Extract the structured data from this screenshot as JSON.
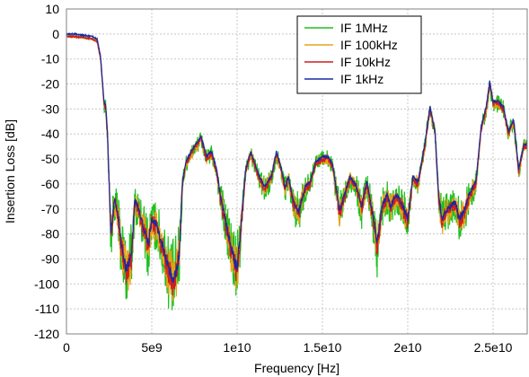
{
  "chart_data": {
    "type": "line",
    "xlabel": "Frequency [Hz]",
    "ylabel": "Insertion Loss [dB]",
    "xlim": [
      0,
      27000000000
    ],
    "ylim": [
      -120,
      10
    ],
    "grid": true,
    "legend_position": "top-right",
    "x_ticks": [
      {
        "value": 0,
        "label": "0"
      },
      {
        "value": 5000000000,
        "label": "5e9"
      },
      {
        "value": 10000000000,
        "label": "1e10"
      },
      {
        "value": 15000000000,
        "label": "1.5e10"
      },
      {
        "value": 20000000000,
        "label": "2e10"
      },
      {
        "value": 25000000000,
        "label": "2.5e10"
      }
    ],
    "y_ticks": [
      {
        "value": 10,
        "label": "10"
      },
      {
        "value": 0,
        "label": "0"
      },
      {
        "value": -10,
        "label": "-10"
      },
      {
        "value": -20,
        "label": "-20"
      },
      {
        "value": -30,
        "label": "-30"
      },
      {
        "value": -40,
        "label": "-40"
      },
      {
        "value": -50,
        "label": "-50"
      },
      {
        "value": -60,
        "label": "-60"
      },
      {
        "value": -70,
        "label": "-70"
      },
      {
        "value": -80,
        "label": "-80"
      },
      {
        "value": -90,
        "label": "-90"
      },
      {
        "value": -100,
        "label": "-100"
      },
      {
        "value": -110,
        "label": "-110"
      },
      {
        "value": -120,
        "label": "-120"
      }
    ],
    "base_curve": {
      "x_ghz": [
        0,
        0.5,
        1,
        1.5,
        1.8,
        2.0,
        2.2,
        2.3,
        2.4,
        2.5,
        2.6,
        2.7,
        2.8,
        3.0,
        3.2,
        3.5,
        3.8,
        4.0,
        4.2,
        4.5,
        4.8,
        5.0,
        5.3,
        5.6,
        6.0,
        6.3,
        6.6,
        6.8,
        7.0,
        7.3,
        7.6,
        7.9,
        8.2,
        8.5,
        8.8,
        9.0,
        9.3,
        9.6,
        9.9,
        10.0,
        10.2,
        10.5,
        10.8,
        11.0,
        11.3,
        11.6,
        12.0,
        12.3,
        12.6,
        12.8,
        13.0,
        13.3,
        13.6,
        14.0,
        14.3,
        14.6,
        15.0,
        15.3,
        15.6,
        16.0,
        16.3,
        16.6,
        17.0,
        17.3,
        17.6,
        18.0,
        18.2,
        18.5,
        18.8,
        19.0,
        19.3,
        19.6,
        20.0,
        20.3,
        20.6,
        21.0,
        21.3,
        21.6,
        21.8,
        22.0,
        22.2,
        22.5,
        22.8,
        23.0,
        23.3,
        23.6,
        24.0,
        24.3,
        24.6,
        24.8,
        25.0,
        25.3,
        25.6,
        25.9,
        26.2,
        26.5,
        26.8
      ],
      "y_db": [
        -1,
        -1,
        -1.5,
        -2,
        -3,
        -10,
        -28,
        -30,
        -40,
        -60,
        -80,
        -75,
        -67,
        -72,
        -85,
        -95,
        -90,
        -68,
        -70,
        -78,
        -85,
        -75,
        -78,
        -85,
        -95,
        -100,
        -90,
        -60,
        -52,
        -48,
        -45,
        -42,
        -50,
        -48,
        -55,
        -65,
        -75,
        -85,
        -93,
        -95,
        -80,
        -55,
        -48,
        -52,
        -58,
        -62,
        -58,
        -48,
        -55,
        -62,
        -58,
        -68,
        -72,
        -62,
        -60,
        -52,
        -50,
        -50,
        -53,
        -72,
        -65,
        -58,
        -62,
        -70,
        -60,
        -75,
        -85,
        -70,
        -65,
        -70,
        -65,
        -68,
        -75,
        -58,
        -60,
        -45,
        -30,
        -40,
        -65,
        -75,
        -72,
        -70,
        -68,
        -75,
        -72,
        -65,
        -60,
        -38,
        -30,
        -20,
        -28,
        -28,
        -30,
        -40,
        -35,
        -55,
        -45
      ]
    },
    "series": [
      {
        "name": "IF 1MHz",
        "color": "#1fbf1f",
        "offset_db": 0,
        "noise_db": 14
      },
      {
        "name": "IF 100kHz",
        "color": "#e8a317",
        "offset_db": 0,
        "noise_db": 9
      },
      {
        "name": "IF 10kHz",
        "color": "#cc1f1f",
        "offset_db": 0,
        "noise_db": 5
      },
      {
        "name": "IF 1kHz",
        "color": "#1a2a9f",
        "offset_db": 1,
        "noise_db": 2
      }
    ]
  }
}
